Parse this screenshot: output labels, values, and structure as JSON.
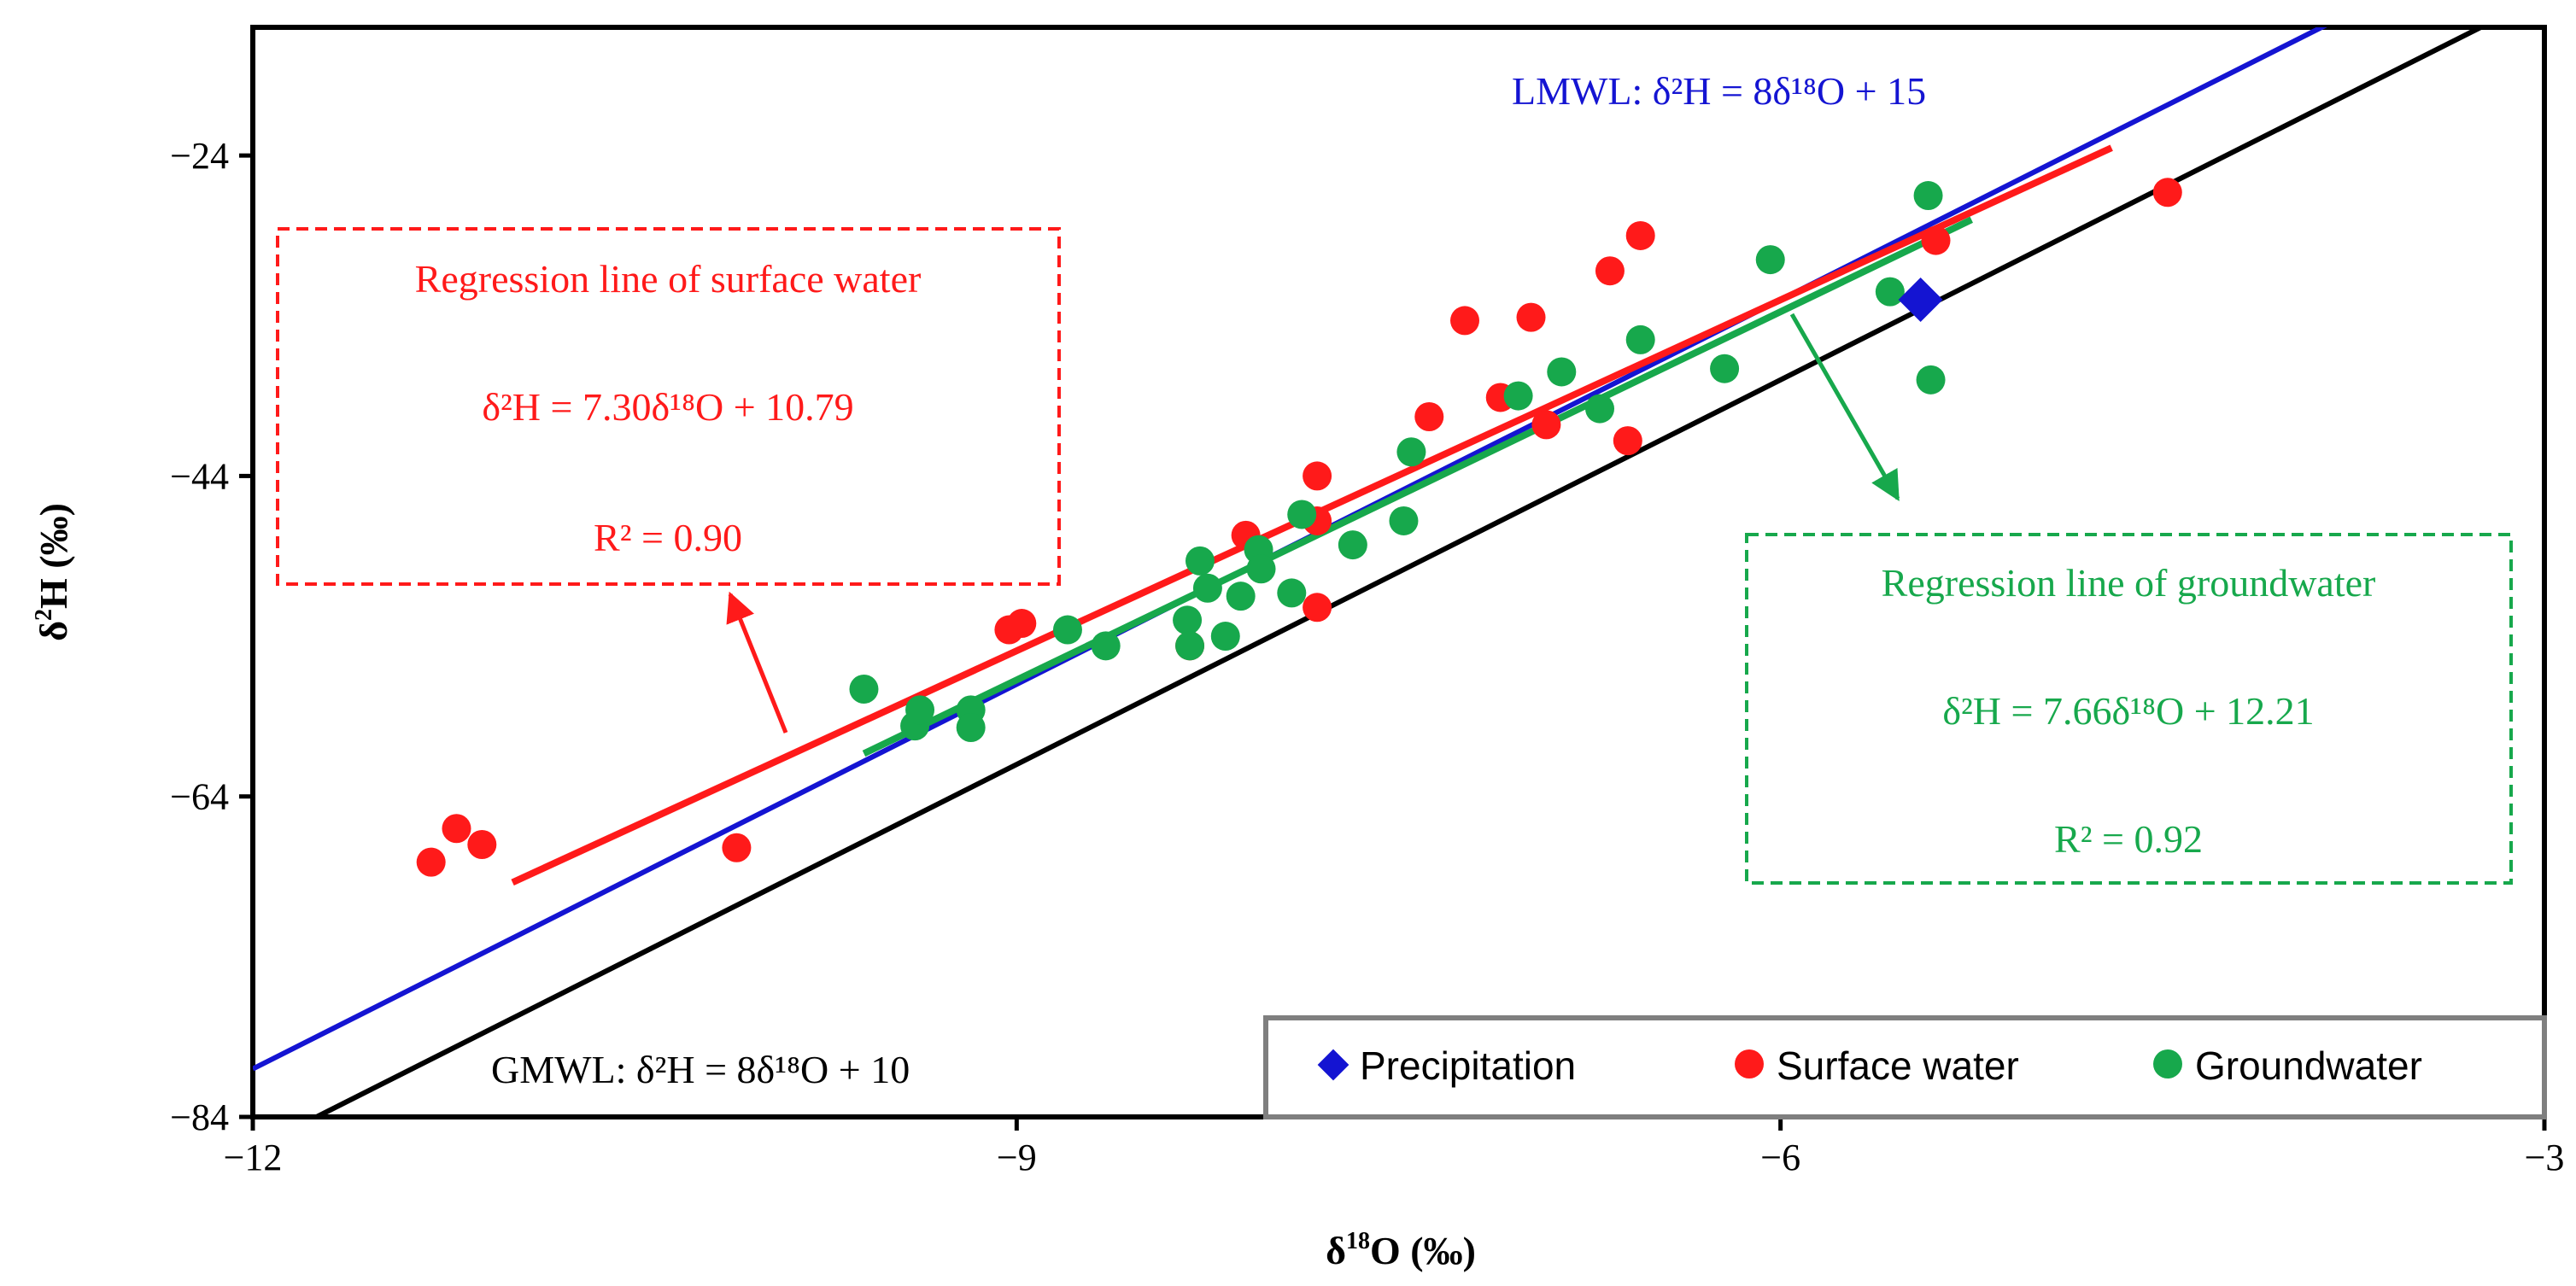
{
  "chart_data": {
    "type": "scatter",
    "xlabel": {
      "prefix": "δ",
      "sup": "18",
      "suffix": "O (‰)"
    },
    "ylabel": {
      "prefix": "δ",
      "sup": "2",
      "suffix": "H (‰)"
    },
    "xlim": [
      -12,
      -3
    ],
    "ylim": [
      -84,
      -16
    ],
    "x_ticks": [
      -12,
      -9,
      -6,
      -3
    ],
    "y_ticks": [
      -84,
      -64,
      -44,
      -24
    ],
    "x_tick_labels": [
      "−12",
      "−9",
      "−6",
      "−3"
    ],
    "y_tick_labels": [
      "−84",
      "−64",
      "−44",
      "−24"
    ],
    "colors": {
      "precipitation": "#1414d2",
      "surface": "#ff1a1a",
      "groundwater": "#17a84c",
      "gmwl": "#000000",
      "lmwl": "#1414d2"
    },
    "series": [
      {
        "name": "Surface water",
        "color": "#ff1a1a",
        "marker": "circle",
        "points": [
          [
            -11.3,
            -68.1
          ],
          [
            -11.2,
            -66.0
          ],
          [
            -11.1,
            -67.0
          ],
          [
            -10.1,
            -67.2
          ],
          [
            -9.03,
            -53.6
          ],
          [
            -8.98,
            -53.2
          ],
          [
            -8.32,
            -54.6
          ],
          [
            -8.1,
            -47.7
          ],
          [
            -7.82,
            -44.0
          ],
          [
            -7.82,
            -46.8
          ],
          [
            -7.82,
            -52.2
          ],
          [
            -7.38,
            -40.3
          ],
          [
            -7.24,
            -34.3
          ],
          [
            -7.1,
            -39.1
          ],
          [
            -6.98,
            -34.1
          ],
          [
            -6.92,
            -40.8
          ],
          [
            -6.67,
            -31.2
          ],
          [
            -6.6,
            -41.8
          ],
          [
            -6.55,
            -29.0
          ],
          [
            -5.39,
            -29.3
          ],
          [
            -4.48,
            -26.3
          ]
        ]
      },
      {
        "name": "Groundwater",
        "color": "#17a84c",
        "marker": "circle",
        "points": [
          [
            -9.6,
            -57.3
          ],
          [
            -9.4,
            -59.6
          ],
          [
            -9.38,
            -58.6
          ],
          [
            -9.18,
            -58.6
          ],
          [
            -9.18,
            -59.7
          ],
          [
            -8.8,
            -53.6
          ],
          [
            -8.65,
            -54.6
          ],
          [
            -8.33,
            -53.0
          ],
          [
            -8.32,
            -54.6
          ],
          [
            -8.28,
            -49.3
          ],
          [
            -8.25,
            -51.0
          ],
          [
            -8.18,
            -54.0
          ],
          [
            -8.12,
            -51.5
          ],
          [
            -8.05,
            -48.6
          ],
          [
            -8.04,
            -49.8
          ],
          [
            -7.92,
            -51.3
          ],
          [
            -7.88,
            -46.4
          ],
          [
            -7.68,
            -48.3
          ],
          [
            -7.48,
            -46.8
          ],
          [
            -7.45,
            -42.5
          ],
          [
            -7.03,
            -39.0
          ],
          [
            -6.86,
            -37.5
          ],
          [
            -6.71,
            -39.8
          ],
          [
            -6.55,
            -35.5
          ],
          [
            -6.22,
            -37.3
          ],
          [
            -6.04,
            -30.5
          ],
          [
            -5.57,
            -32.5
          ],
          [
            -5.42,
            -26.5
          ],
          [
            -5.41,
            -38.0
          ]
        ]
      },
      {
        "name": "Precipitation",
        "color": "#1414d2",
        "marker": "diamond",
        "points": [
          [
            -5.45,
            -33.0
          ]
        ]
      }
    ],
    "lines": [
      {
        "id": "lmwl",
        "color": "#1414d2",
        "slope": 8,
        "intercept": 15,
        "x_from": -12.0,
        "x_to": -3.82
      },
      {
        "id": "gmwl",
        "color": "#000000",
        "slope": 8,
        "intercept": 10,
        "x_from": -11.75,
        "x_to": -3.2
      },
      {
        "id": "surface-regression",
        "color": "#ff1a1a",
        "slope": 7.3,
        "intercept": 10.79,
        "x_from": -10.98,
        "x_to": -4.7
      },
      {
        "id": "groundwater-regression",
        "color": "#17a84c",
        "slope": 7.66,
        "intercept": 12.21,
        "x_from": -9.6,
        "x_to": -5.25
      }
    ],
    "annotations": {
      "lmwl": {
        "text": "LMWL: δ²H = 8δ¹⁸O + 15",
        "color": "#1414d2"
      },
      "gmwl": {
        "text": "GMWL: δ²H = 8δ¹⁸O + 10",
        "color": "#000000"
      },
      "surface": {
        "title": "Regression line of surface water",
        "equation": "δ²H = 7.30δ¹⁸O + 10.79",
        "r2": "R² = 0.90",
        "color": "#ff1a1a"
      },
      "groundwater": {
        "title": "Regression line of groundwater",
        "equation": "δ²H = 7.66δ¹⁸O + 12.21",
        "r2": "R² = 0.92",
        "color": "#17a84c"
      }
    },
    "legend": {
      "position": "bottom-right",
      "entries": [
        {
          "label": "Precipitation",
          "color": "#1414d2",
          "marker": "diamond"
        },
        {
          "label": "Surface water",
          "color": "#ff1a1a",
          "marker": "circle"
        },
        {
          "label": "Groundwater",
          "color": "#17a84c",
          "marker": "circle"
        }
      ]
    },
    "grid": false
  }
}
